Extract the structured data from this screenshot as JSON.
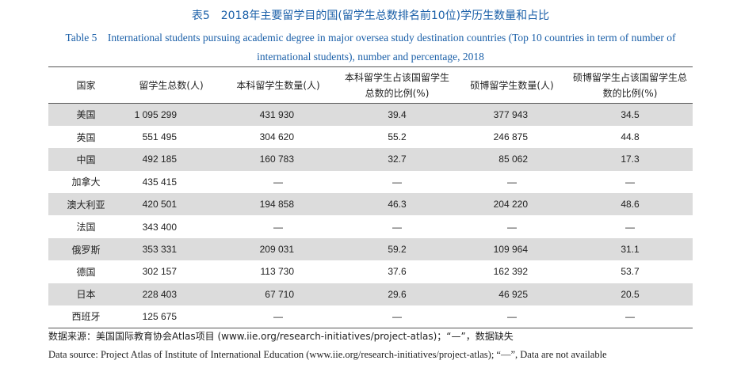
{
  "title": {
    "cn": "表5　2018年主要留学目的国(留学生总数排名前10位)学历生数量和占比",
    "en": "Table 5　International students pursuing academic degree in major oversea study destination countries (Top 10 countries in term of number of international students), number and percentage, 2018"
  },
  "table": {
    "headers": [
      "国家",
      "留学生总数(人)",
      "本科留学生数量(人)",
      "本科留学生占该国留学生总数的比例(%)",
      "硕博留学生数量(人)",
      "硕博留学生占该国留学生总数的比例(%)"
    ],
    "rows": [
      [
        "美国",
        "1 095 299",
        "431 930",
        "39.4",
        "377 943",
        "34.5"
      ],
      [
        "英国",
        "551 495",
        "304 620",
        "55.2",
        "246 875",
        "44.8"
      ],
      [
        "中国",
        "492 185",
        "160 783",
        "32.7",
        "85 062",
        "17.3"
      ],
      [
        "加拿大",
        "435 415",
        "—",
        "—",
        "—",
        "—"
      ],
      [
        "澳大利亚",
        "420 501",
        "194 858",
        "46.3",
        "204 220",
        "48.6"
      ],
      [
        "法国",
        "343 400",
        "—",
        "—",
        "—",
        "—"
      ],
      [
        "俄罗斯",
        "353 331",
        "209 031",
        "59.2",
        "109 964",
        "31.1"
      ],
      [
        "德国",
        "302 157",
        "113 730",
        "37.6",
        "162 392",
        "53.7"
      ],
      [
        "日本",
        "228 403",
        "67 710",
        "29.6",
        "46 925",
        "20.5"
      ],
      [
        "西班牙",
        "125 675",
        "—",
        "—",
        "—",
        "—"
      ]
    ]
  },
  "notes": {
    "cn": "数据来源：美国国际教育协会Atlas项目 (www.iie.org/research-initiatives/project-atlas)；“—”，数据缺失",
    "en": "Data source: Project Atlas of Institute of International Education (www.iie.org/research-initiatives/project-atlas); “—”, Data are not available"
  }
}
